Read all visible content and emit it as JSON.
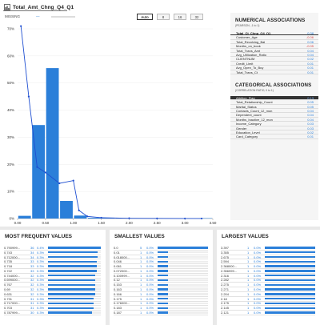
{
  "header": {
    "title": "Total_Amt_Chng_Q4_Q1",
    "missing_label": "MISSING",
    "missing_value": "—"
  },
  "bins": [
    "Auto",
    "8",
    "16",
    "32"
  ],
  "chart_data": {
    "type": "bar",
    "categories": [
      "0.00-0.25",
      "0.25-0.50",
      "0.50-0.75",
      "0.75-1.00",
      "1.00-1.25",
      "1.25-1.50",
      "1.50-1.75",
      "1.75-2.00",
      "2.00-2.25",
      "2.25-2.50",
      "2.50-2.75",
      "2.75-3.00",
      "3.00-3.25",
      "3.25-3.50"
    ],
    "values": [
      1.0,
      34.5,
      55.5,
      6.5,
      1.1,
      0.3,
      0.1,
      0.05,
      0.03,
      0.02,
      0.01,
      0.01,
      0.01,
      0.01
    ],
    "density_line": {
      "x": [
        0.06,
        0.2,
        0.35,
        0.5,
        0.75,
        1.0,
        1.1,
        1.25,
        1.5,
        2.0,
        2.5,
        3.0,
        3.3
      ],
      "y": [
        71,
        45,
        19,
        17,
        13,
        14,
        3,
        0.8,
        0.3,
        0.1,
        0.05,
        0.02,
        0.01
      ]
    },
    "xlim": [
      0,
      3.5
    ],
    "ylim": [
      0,
      70
    ],
    "xticks": [
      "0.00",
      "0.50",
      "1.00",
      "1.50",
      "2.00",
      "2.50",
      "3.00",
      "3.50"
    ],
    "yticks": [
      "0%",
      "10%",
      "20%",
      "30%",
      "40%",
      "50%",
      "60%",
      "70%"
    ],
    "bar_color": "#2b7fd9"
  },
  "numerical": {
    "title": "NUMERICAL ASSOCIATIONS",
    "subtitle": "(PEARSON, -1 to 1)",
    "rows": [
      {
        "name": "Total_Ct_Chng_Q4_Q1",
        "value": "0.38"
      },
      {
        "name": "Customer_Age",
        "value": "-0.06"
      },
      {
        "name": "Total_Revolving_Bal",
        "value": "0.06"
      },
      {
        "name": "Months_on_book",
        "value": "-0.05"
      },
      {
        "name": "Total_Trans_Amt",
        "value": "0.04"
      },
      {
        "name": "Avg_Utilization_Ratio",
        "value": "0.04"
      },
      {
        "name": "CLIENTNUM",
        "value": "0.02"
      },
      {
        "name": "Credit_Limit",
        "value": "0.01"
      },
      {
        "name": "Avg_Open_To_Buy",
        "value": "0.01"
      },
      {
        "name": "Total_Trans_Ct",
        "value": "0.01"
      }
    ]
  },
  "categorical": {
    "title": "CATEGORICAL ASSOCIATIONS",
    "subtitle": "(CORRELATION RATIO, 0 to 1)",
    "rows": [
      {
        "name": "Attrition_Flag",
        "value": "0.13"
      },
      {
        "name": "Total_Relationship_Count",
        "value": "0.05"
      },
      {
        "name": "Marital_Status",
        "value": "0.05"
      },
      {
        "name": "Contacts_Count_12_mon",
        "value": "0.04"
      },
      {
        "name": "Dependent_count",
        "value": "0.04"
      },
      {
        "name": "Months_Inactive_12_mon",
        "value": "0.04"
      },
      {
        "name": "Income_Category",
        "value": "0.03"
      },
      {
        "name": "Gender",
        "value": "0.03"
      },
      {
        "name": "Education_Level",
        "value": "0.02"
      },
      {
        "name": "Card_Category",
        "value": "0.01"
      }
    ]
  },
  "frequent": {
    "title": "MOST FREQUENT VALUES",
    "rows": [
      {
        "value": "0.790999...",
        "count": "36",
        "pct": "0.4%",
        "frac": 1.0
      },
      {
        "value": "0.743",
        "count": "34",
        "pct": "0.3%",
        "frac": 0.94
      },
      {
        "value": "0.712000...",
        "count": "34",
        "pct": "0.3%",
        "frac": 0.94
      },
      {
        "value": "0.735",
        "count": "33",
        "pct": "0.3%",
        "frac": 0.92
      },
      {
        "value": "0.718",
        "count": "33",
        "pct": "0.3%",
        "frac": 0.92
      },
      {
        "value": "0.722",
        "count": "33",
        "pct": "0.3%",
        "frac": 0.92
      },
      {
        "value": "0.744000...",
        "count": "32",
        "pct": "0.3%",
        "frac": 0.89
      },
      {
        "value": "0.699000...",
        "count": "32",
        "pct": "0.3%",
        "frac": 0.89
      },
      {
        "value": "0.767",
        "count": "32",
        "pct": "0.3%",
        "frac": 0.89
      },
      {
        "value": "0.69",
        "count": "32",
        "pct": "0.3%",
        "frac": 0.89
      },
      {
        "value": "0.631",
        "count": "32",
        "pct": "0.3%",
        "frac": 0.89
      },
      {
        "value": "0.731",
        "count": "31",
        "pct": "0.3%",
        "frac": 0.86
      },
      {
        "value": "0.717000...",
        "count": "31",
        "pct": "0.3%",
        "frac": 0.86
      },
      {
        "value": "0.703",
        "count": "31",
        "pct": "0.3%",
        "frac": 0.86
      },
      {
        "value": "0.787999...",
        "count": "30",
        "pct": "0.3%",
        "frac": 0.83
      }
    ]
  },
  "smallest": {
    "title": "SMALLEST VALUES",
    "rows": [
      {
        "value": "0.0",
        "count": "5",
        "pct": "0.0%",
        "frac": 1.0
      },
      {
        "value": "0.01",
        "count": "1",
        "pct": "0.0%",
        "frac": 0.2
      },
      {
        "value": "0.018000...",
        "count": "1",
        "pct": "0.0%",
        "frac": 0.2
      },
      {
        "value": "0.046",
        "count": "1",
        "pct": "0.0%",
        "frac": 0.2
      },
      {
        "value": "0.061",
        "count": "1",
        "pct": "0.0%",
        "frac": 0.2
      },
      {
        "value": "0.072000...",
        "count": "1",
        "pct": "0.0%",
        "frac": 0.2
      },
      {
        "value": "0.100999...",
        "count": "1",
        "pct": "0.0%",
        "frac": 0.2
      },
      {
        "value": "0.12",
        "count": "1",
        "pct": "0.0%",
        "frac": 0.2
      },
      {
        "value": "0.153",
        "count": "1",
        "pct": "0.0%",
        "frac": 0.2
      },
      {
        "value": "0.163",
        "count": "1",
        "pct": "0.0%",
        "frac": 0.2
      },
      {
        "value": "0.166",
        "count": "1",
        "pct": "0.0%",
        "frac": 0.2
      },
      {
        "value": "0.175",
        "count": "1",
        "pct": "0.0%",
        "frac": 0.2
      },
      {
        "value": "0.176000...",
        "count": "1",
        "pct": "0.0%",
        "frac": 0.2
      },
      {
        "value": "0.183",
        "count": "1",
        "pct": "0.0%",
        "frac": 0.2
      },
      {
        "value": "0.187",
        "count": "1",
        "pct": "0.0%",
        "frac": 0.2
      }
    ]
  },
  "largest": {
    "title": "LARGEST VALUES",
    "rows": [
      {
        "value": "3.397",
        "count": "1",
        "pct": "0.0%",
        "frac": 1.0
      },
      {
        "value": "3.355",
        "count": "1",
        "pct": "0.0%",
        "frac": 1.0
      },
      {
        "value": "2.675",
        "count": "1",
        "pct": "0.0%",
        "frac": 1.0
      },
      {
        "value": "2.594",
        "count": "1",
        "pct": "0.0%",
        "frac": 1.0
      },
      {
        "value": "2.368000...",
        "count": "1",
        "pct": "0.0%",
        "frac": 1.0
      },
      {
        "value": "2.356999...",
        "count": "1",
        "pct": "0.0%",
        "frac": 1.0
      },
      {
        "value": "2.316",
        "count": "1",
        "pct": "0.0%",
        "frac": 1.0
      },
      {
        "value": "2.282",
        "count": "1",
        "pct": "0.0%",
        "frac": 1.0
      },
      {
        "value": "2.275",
        "count": "1",
        "pct": "0.0%",
        "frac": 1.0
      },
      {
        "value": "2.271",
        "count": "1",
        "pct": "0.0%",
        "frac": 1.0
      },
      {
        "value": "2.204",
        "count": "1",
        "pct": "0.0%",
        "frac": 1.0
      },
      {
        "value": "2.18",
        "count": "1",
        "pct": "0.0%",
        "frac": 1.0
      },
      {
        "value": "2.175",
        "count": "1",
        "pct": "0.0%",
        "frac": 1.0
      },
      {
        "value": "2.145",
        "count": "1",
        "pct": "0.0%",
        "frac": 1.0
      },
      {
        "value": "2.121",
        "count": "1",
        "pct": "0.0%",
        "frac": 1.0
      }
    ]
  },
  "icons": {
    "title_icon": "numeric-column-icon"
  },
  "colors": {
    "accent": "#2b7fd9",
    "negative": "#d64545",
    "highlight_row": "#333333"
  }
}
